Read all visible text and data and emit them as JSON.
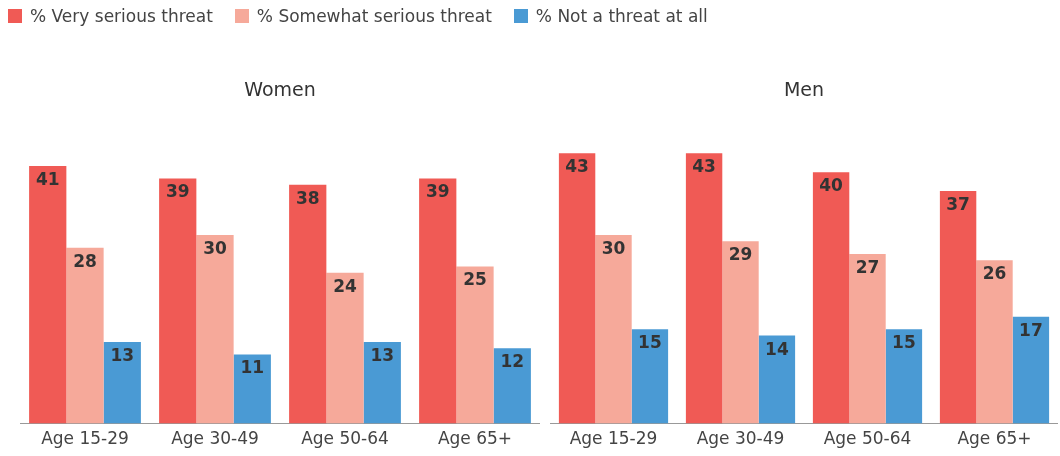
{
  "chart_data": [
    {
      "type": "bar",
      "title": "Women",
      "categories": [
        "Age 15-29",
        "Age 30-49",
        "Age 50-64",
        "Age 65+"
      ],
      "series": [
        {
          "name": "% Very serious threat",
          "color": "#f05a55",
          "values": [
            41,
            39,
            38,
            39
          ]
        },
        {
          "name": "% Somewhat serious threat",
          "color": "#f6a99a",
          "values": [
            28,
            30,
            24,
            25
          ]
        },
        {
          "name": "% Not a threat at all",
          "color": "#4a9ad4",
          "values": [
            13,
            11,
            13,
            12
          ]
        }
      ],
      "tick_labels": "x",
      "grid": false,
      "legend": "top",
      "data_labels": true
    },
    {
      "type": "bar",
      "title": "Men",
      "categories": [
        "Age 15-29",
        "Age 30-49",
        "Age 50-64",
        "Age 65+"
      ],
      "series": [
        {
          "color": "#f05a55",
          "values": [
            43,
            43,
            40,
            37
          ]
        },
        {
          "color": "#f6a99a",
          "values": [
            30,
            29,
            27,
            26
          ]
        },
        {
          "color": "#4a9ad4",
          "values": [
            15,
            14,
            15,
            17
          ]
        }
      ],
      "tick_labels": "x",
      "grid": false,
      "data_labels": true
    }
  ]
}
